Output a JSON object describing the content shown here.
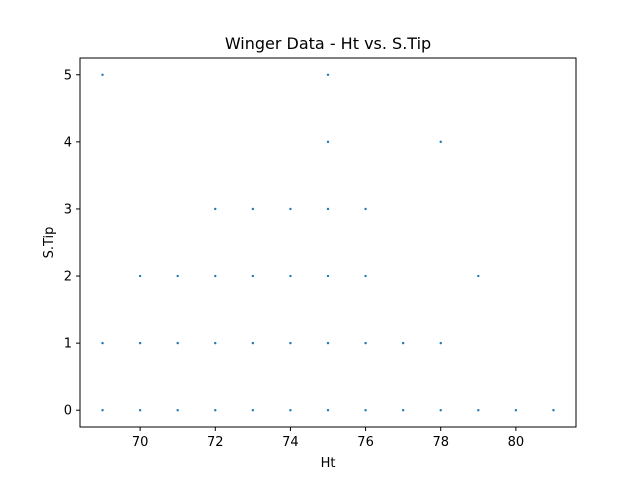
{
  "chart_data": {
    "type": "scatter",
    "title": "Winger Data - Ht vs. S.Tip",
    "xlabel": "Ht",
    "ylabel": "S.Tip",
    "xlim": [
      68.4,
      81.6
    ],
    "ylim": [
      -0.25,
      5.25
    ],
    "xticks": [
      70,
      72,
      74,
      76,
      78,
      80
    ],
    "yticks": [
      0,
      1,
      2,
      3,
      4,
      5
    ],
    "grid": false,
    "legend": "none",
    "marker_color": "#1f77b4",
    "points": [
      {
        "x": 69,
        "y": 0
      },
      {
        "x": 70,
        "y": 0
      },
      {
        "x": 71,
        "y": 0
      },
      {
        "x": 72,
        "y": 0
      },
      {
        "x": 73,
        "y": 0
      },
      {
        "x": 74,
        "y": 0
      },
      {
        "x": 75,
        "y": 0
      },
      {
        "x": 76,
        "y": 0
      },
      {
        "x": 77,
        "y": 0
      },
      {
        "x": 78,
        "y": 0
      },
      {
        "x": 79,
        "y": 0
      },
      {
        "x": 80,
        "y": 0
      },
      {
        "x": 81,
        "y": 0
      },
      {
        "x": 69,
        "y": 1
      },
      {
        "x": 70,
        "y": 1
      },
      {
        "x": 71,
        "y": 1
      },
      {
        "x": 72,
        "y": 1
      },
      {
        "x": 73,
        "y": 1
      },
      {
        "x": 74,
        "y": 1
      },
      {
        "x": 75,
        "y": 1
      },
      {
        "x": 76,
        "y": 1
      },
      {
        "x": 77,
        "y": 1
      },
      {
        "x": 78,
        "y": 1
      },
      {
        "x": 70,
        "y": 2
      },
      {
        "x": 71,
        "y": 2
      },
      {
        "x": 72,
        "y": 2
      },
      {
        "x": 73,
        "y": 2
      },
      {
        "x": 74,
        "y": 2
      },
      {
        "x": 75,
        "y": 2
      },
      {
        "x": 76,
        "y": 2
      },
      {
        "x": 79,
        "y": 2
      },
      {
        "x": 72,
        "y": 3
      },
      {
        "x": 73,
        "y": 3
      },
      {
        "x": 74,
        "y": 3
      },
      {
        "x": 75,
        "y": 3
      },
      {
        "x": 76,
        "y": 3
      },
      {
        "x": 75,
        "y": 4
      },
      {
        "x": 78,
        "y": 4
      },
      {
        "x": 69,
        "y": 5
      },
      {
        "x": 75,
        "y": 5
      }
    ]
  }
}
